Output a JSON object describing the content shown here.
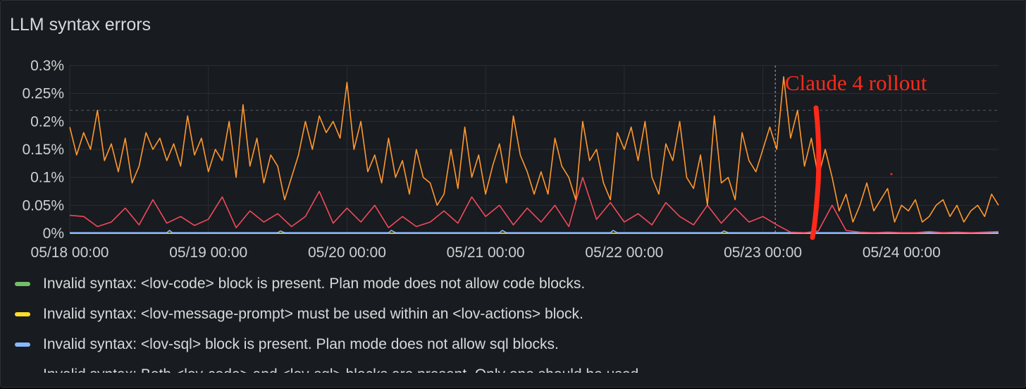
{
  "panel": {
    "title": "LLM syntax errors"
  },
  "annotation": {
    "text": "Claude 4 rollout",
    "color": "#ff2a1a"
  },
  "chart_data": {
    "type": "line",
    "title": "LLM syntax errors",
    "y_ticks": [
      "0%",
      "0.05%",
      "0.1%",
      "0.15%",
      "0.2%",
      "0.25%",
      "0.3%"
    ],
    "ylim": [
      0,
      0.3
    ],
    "x_ticks": [
      "05/18 00:00",
      "05/19 00:00",
      "05/20 00:00",
      "05/21 00:00",
      "05/22 00:00",
      "05/23 00:00",
      "05/24 00:00"
    ],
    "x_tick_days": [
      0,
      1,
      2,
      3,
      4,
      5,
      6
    ],
    "xlim_days": [
      0,
      6.7
    ],
    "threshold_y": 0.22,
    "rollout_day": 5.09,
    "grid": true,
    "legend_position": "bottom",
    "series": [
      {
        "name": "Invalid syntax: <lov-code> block is present. Plan mode does not allow code blocks.",
        "color": "#73bf69",
        "x": [
          0,
          6.7
        ],
        "values": [
          0,
          0
        ]
      },
      {
        "name": "Invalid syntax: <lov-message-prompt> must be used within an <lov-actions> block.",
        "color": "#fade2a",
        "x": [
          0,
          6.7
        ],
        "values": [
          0,
          0
        ]
      },
      {
        "name": "Invalid syntax: <lov-sql> block is present. Plan mode does not allow sql blocks.",
        "color": "#8ab8ff",
        "x": [
          0,
          0.5,
          0.7,
          0.72,
          0.74,
          1.3,
          1.5,
          1.52,
          1.55,
          2.1,
          2.3,
          2.32,
          2.35,
          2.9,
          3.1,
          3.12,
          3.15,
          3.7,
          3.9,
          3.92,
          3.95,
          4.5,
          4.7,
          4.72,
          4.75,
          5.3,
          5.5,
          6.7
        ],
        "values": [
          0.001,
          0.001,
          0.001,
          0.005,
          0.001,
          0.001,
          0.001,
          0.004,
          0.001,
          0.001,
          0.001,
          0.005,
          0.001,
          0.001,
          0.001,
          0.005,
          0.001,
          0.001,
          0.001,
          0.005,
          0.001,
          0.001,
          0.001,
          0.004,
          0.001,
          0.001,
          0.001,
          0.001
        ]
      },
      {
        "name": "Invalid syntax: Both <lov-code> and <lov-sql> blocks are present. Only one should be used.",
        "color": "#f2495c",
        "x": [
          0,
          0.1,
          0.2,
          0.3,
          0.4,
          0.5,
          0.6,
          0.7,
          0.8,
          0.9,
          1.0,
          1.1,
          1.2,
          1.3,
          1.4,
          1.5,
          1.6,
          1.7,
          1.8,
          1.9,
          2.0,
          2.1,
          2.2,
          2.3,
          2.4,
          2.5,
          2.6,
          2.7,
          2.8,
          2.9,
          3.0,
          3.1,
          3.2,
          3.3,
          3.4,
          3.5,
          3.6,
          3.7,
          3.8,
          3.9,
          4.0,
          4.1,
          4.2,
          4.3,
          4.4,
          4.5,
          4.6,
          4.7,
          4.8,
          4.9,
          5.0,
          5.1,
          5.2,
          5.3,
          5.4,
          5.5,
          5.6,
          5.7,
          5.8,
          5.9,
          6.0,
          6.1,
          6.2,
          6.3,
          6.4,
          6.5,
          6.6,
          6.7
        ],
        "values": [
          0.032,
          0.03,
          0.012,
          0.02,
          0.045,
          0.015,
          0.06,
          0.018,
          0.03,
          0.014,
          0.025,
          0.065,
          0.01,
          0.04,
          0.02,
          0.035,
          0.012,
          0.03,
          0.075,
          0.018,
          0.045,
          0.02,
          0.05,
          0.01,
          0.03,
          0.012,
          0.02,
          0.04,
          0.018,
          0.065,
          0.03,
          0.05,
          0.015,
          0.045,
          0.02,
          0.05,
          0.012,
          0.1,
          0.025,
          0.055,
          0.02,
          0.035,
          0.015,
          0.055,
          0.03,
          0.015,
          0.05,
          0.018,
          0.045,
          0.02,
          0.03,
          0.015,
          0.002,
          0.001,
          0.004,
          0.05,
          0.005,
          0.002,
          0.001,
          0.002,
          0.001,
          0.001,
          0.003,
          0.001,
          0.002,
          0.001,
          0.002,
          0.003
        ]
      },
      {
        "name": "",
        "color": "#ff9830",
        "x": [
          0,
          0.05,
          0.1,
          0.15,
          0.2,
          0.25,
          0.3,
          0.35,
          0.4,
          0.45,
          0.5,
          0.55,
          0.6,
          0.65,
          0.7,
          0.75,
          0.8,
          0.85,
          0.9,
          0.95,
          1.0,
          1.05,
          1.1,
          1.15,
          1.2,
          1.25,
          1.3,
          1.35,
          1.4,
          1.45,
          1.5,
          1.55,
          1.6,
          1.65,
          1.7,
          1.75,
          1.8,
          1.85,
          1.9,
          1.95,
          2.0,
          2.05,
          2.1,
          2.15,
          2.2,
          2.25,
          2.3,
          2.35,
          2.4,
          2.45,
          2.5,
          2.55,
          2.6,
          2.65,
          2.7,
          2.75,
          2.8,
          2.85,
          2.9,
          2.95,
          3.0,
          3.05,
          3.1,
          3.15,
          3.2,
          3.25,
          3.3,
          3.35,
          3.4,
          3.45,
          3.5,
          3.55,
          3.6,
          3.65,
          3.7,
          3.75,
          3.8,
          3.85,
          3.9,
          3.95,
          4.0,
          4.05,
          4.1,
          4.15,
          4.2,
          4.25,
          4.3,
          4.35,
          4.4,
          4.45,
          4.5,
          4.55,
          4.6,
          4.65,
          4.7,
          4.75,
          4.8,
          4.85,
          4.9,
          4.95,
          5.0,
          5.05,
          5.1,
          5.15,
          5.2,
          5.25,
          5.3,
          5.35,
          5.4,
          5.45,
          5.5,
          5.55,
          5.6,
          5.65,
          5.7,
          5.75,
          5.8,
          5.85,
          5.9,
          5.95,
          6.0,
          6.05,
          6.1,
          6.15,
          6.2,
          6.25,
          6.3,
          6.35,
          6.4,
          6.45,
          6.5,
          6.55,
          6.6,
          6.65,
          6.7
        ],
        "values": [
          0.19,
          0.14,
          0.18,
          0.15,
          0.22,
          0.13,
          0.16,
          0.11,
          0.17,
          0.09,
          0.12,
          0.18,
          0.15,
          0.17,
          0.13,
          0.16,
          0.12,
          0.21,
          0.14,
          0.17,
          0.11,
          0.15,
          0.13,
          0.2,
          0.1,
          0.23,
          0.12,
          0.17,
          0.09,
          0.14,
          0.12,
          0.06,
          0.1,
          0.14,
          0.2,
          0.15,
          0.21,
          0.18,
          0.2,
          0.17,
          0.27,
          0.15,
          0.2,
          0.11,
          0.14,
          0.09,
          0.17,
          0.1,
          0.13,
          0.07,
          0.15,
          0.1,
          0.09,
          0.05,
          0.07,
          0.15,
          0.08,
          0.19,
          0.1,
          0.14,
          0.07,
          0.12,
          0.16,
          0.09,
          0.21,
          0.14,
          0.11,
          0.07,
          0.11,
          0.07,
          0.17,
          0.12,
          0.1,
          0.06,
          0.2,
          0.13,
          0.15,
          0.09,
          0.06,
          0.18,
          0.15,
          0.19,
          0.13,
          0.2,
          0.1,
          0.07,
          0.16,
          0.13,
          0.2,
          0.1,
          0.08,
          0.14,
          0.05,
          0.21,
          0.09,
          0.1,
          0.06,
          0.18,
          0.13,
          0.11,
          0.15,
          0.19,
          0.15,
          0.28,
          0.17,
          0.22,
          0.12,
          0.17,
          0.1,
          0.15,
          0.1,
          0.04,
          0.07,
          0.02,
          0.05,
          0.09,
          0.04,
          0.06,
          0.08,
          0.02,
          0.05,
          0.04,
          0.06,
          0.02,
          0.03,
          0.05,
          0.06,
          0.03,
          0.05,
          0.02,
          0.04,
          0.05,
          0.03,
          0.07,
          0.05
        ]
      }
    ]
  }
}
